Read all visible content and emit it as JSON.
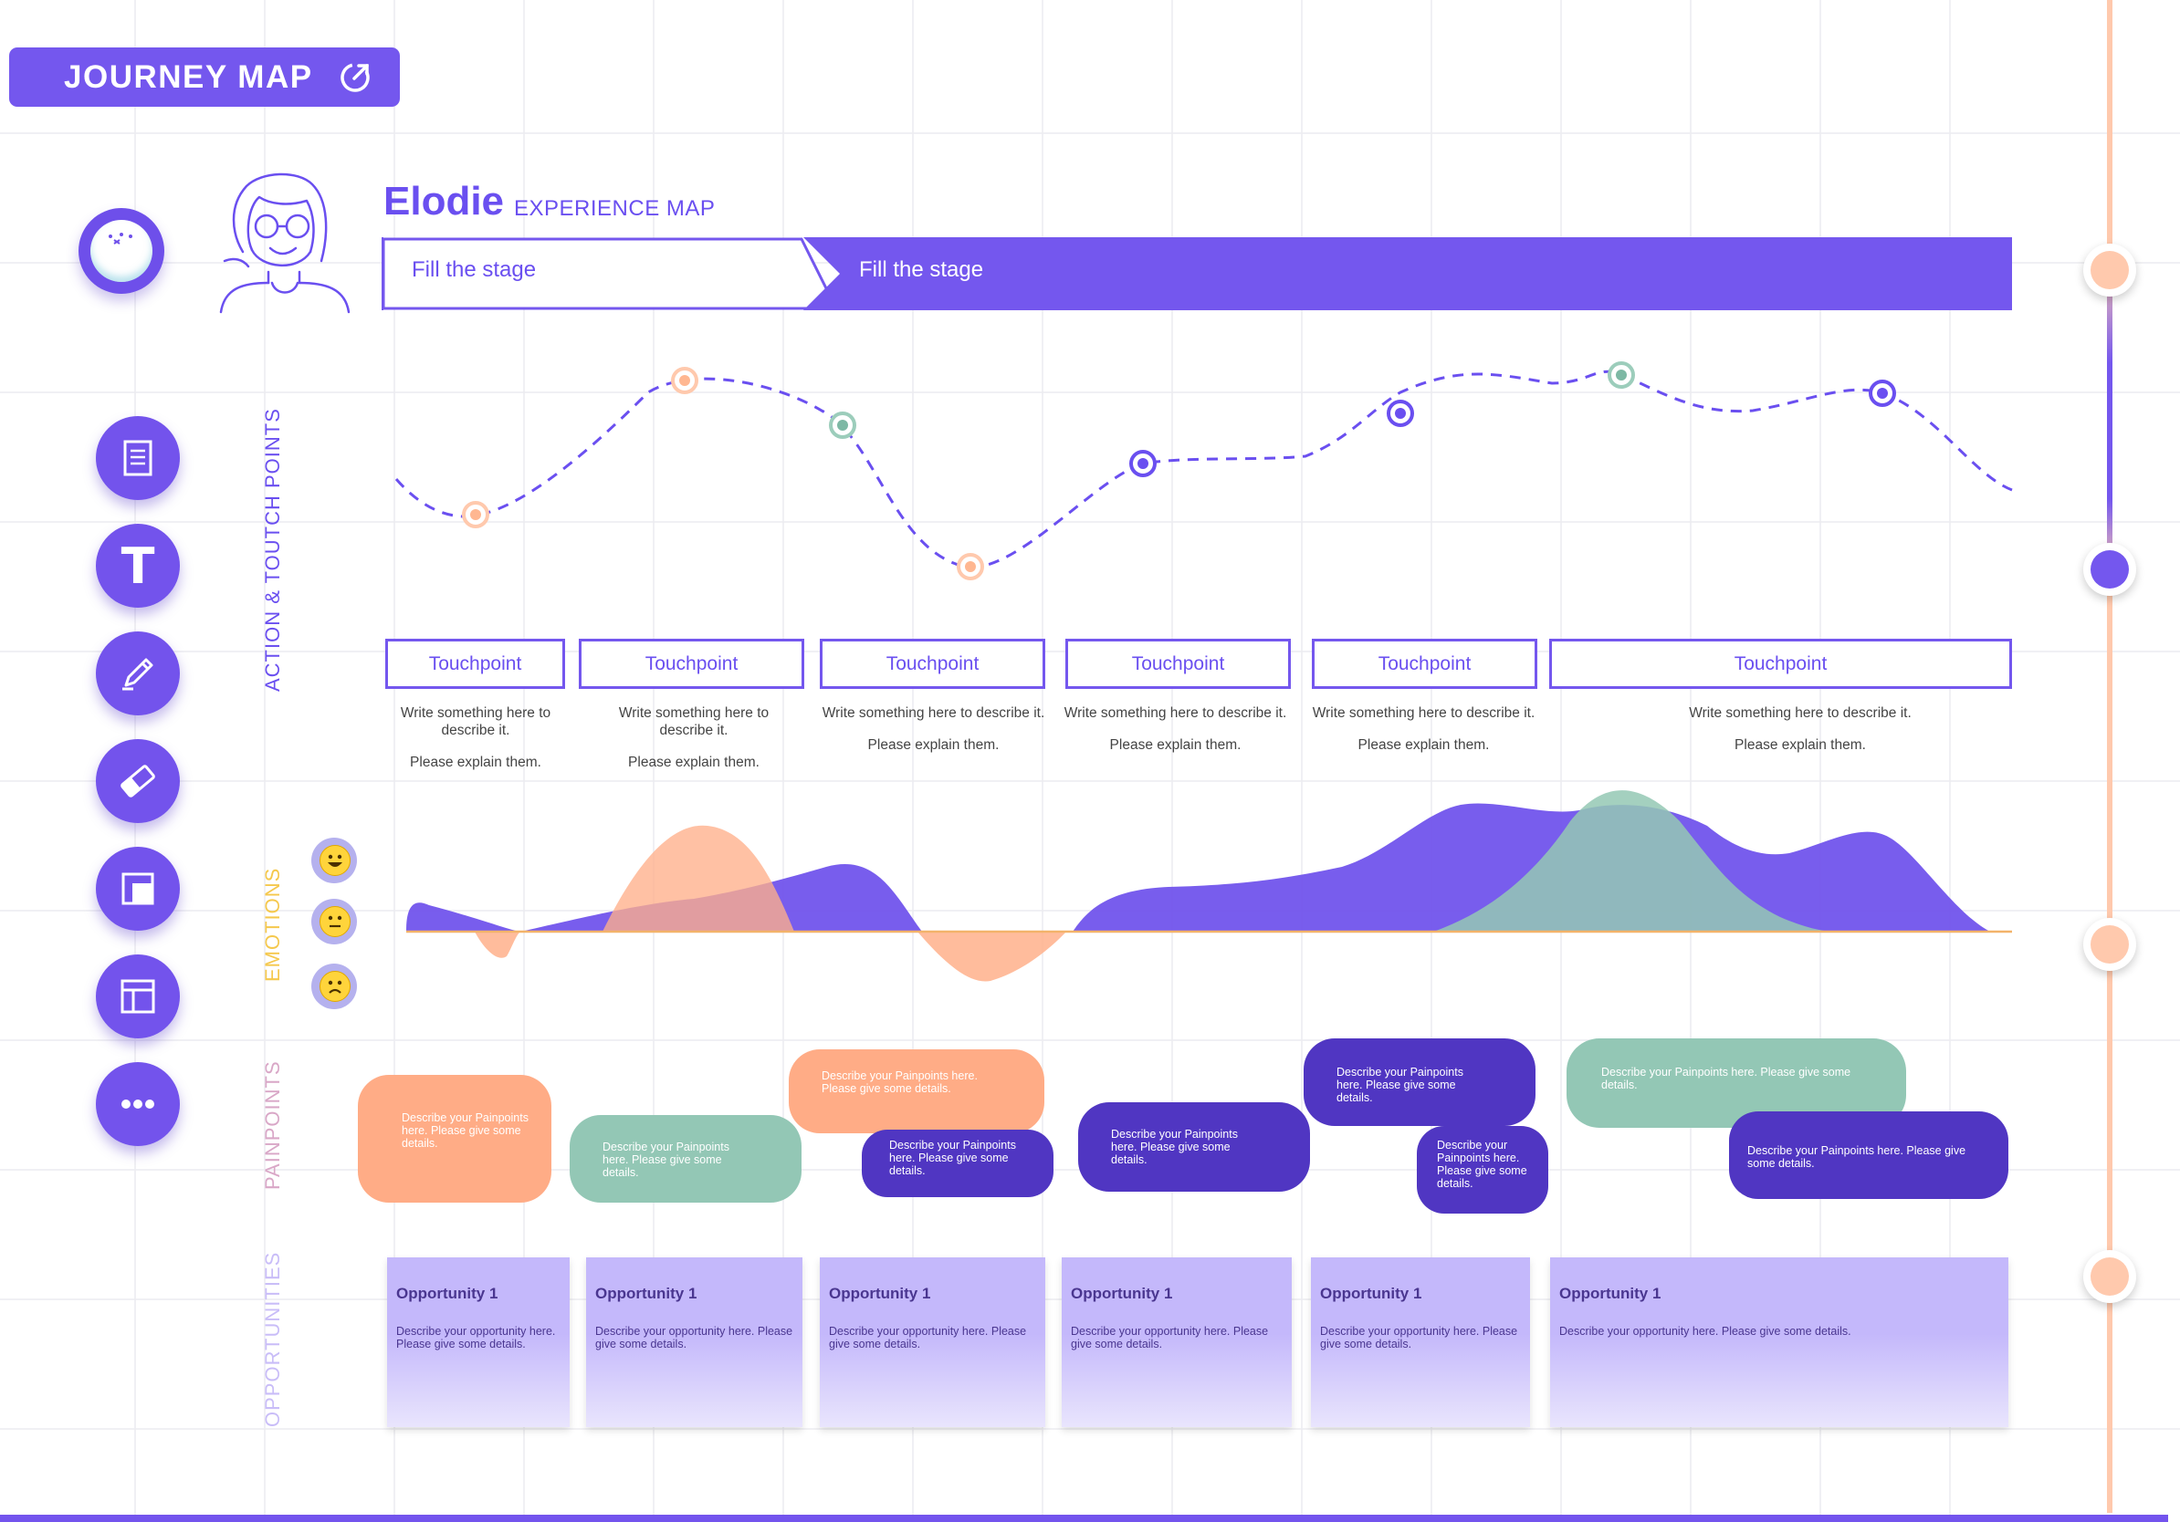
{
  "header": {
    "title": "JOURNEY MAP",
    "share_icon": "external-link-icon"
  },
  "persona": {
    "name": "Elodie",
    "subtitle": "EXPERIENCE MAP",
    "avatar_icon": "persona-avatar-icon"
  },
  "stages": [
    {
      "label": "Fill the stage"
    },
    {
      "label": "Fill the stage"
    }
  ],
  "sections": {
    "actions": "ACTION & TOUTCH POINTS",
    "emotions": "EMOTIONS",
    "painpoints": "PAINPOINTS",
    "opportunities": "OPPORTUNITIES"
  },
  "tools": [
    {
      "name": "document-icon"
    },
    {
      "name": "text-icon",
      "label": "T"
    },
    {
      "name": "pencil-icon"
    },
    {
      "name": "eraser-icon"
    },
    {
      "name": "layers-icon"
    },
    {
      "name": "layout-icon"
    },
    {
      "name": "more-icon"
    }
  ],
  "touchpoints": [
    {
      "label": "Touchpoint",
      "desc": "Write something here to describe it.",
      "note": "Please explain them."
    },
    {
      "label": "Touchpoint",
      "desc": "Write something here to describe it.",
      "note": "Please explain them."
    },
    {
      "label": "Touchpoint",
      "desc": "Write something here to describe it.",
      "note": "Please explain them."
    },
    {
      "label": "Touchpoint",
      "desc": "Write something here to describe it.",
      "note": "Please explain them."
    },
    {
      "label": "Touchpoint",
      "desc": "Write something here to describe it.",
      "note": "Please explain them."
    },
    {
      "label": "Touchpoint",
      "desc": "Write something here to describe it.",
      "note": "Please explain them."
    }
  ],
  "emotion_faces": [
    "happy-face-icon",
    "neutral-face-icon",
    "sad-face-icon"
  ],
  "painpoints": [
    {
      "text": "Describe your Painpoints here. Please give some details.",
      "color": "#ffac86"
    },
    {
      "text": "Describe your Painpoints here. Please give some details.",
      "color": "#93c7b5"
    },
    {
      "text": "Describe your Painpoints here. Please give some details.",
      "color": "#ffac86"
    },
    {
      "text": "Describe your Painpoints here. Please give some details.",
      "color": "#5036c2"
    },
    {
      "text": "Describe your Painpoints here. Please give some details.",
      "color": "#5036c2"
    },
    {
      "text": "Describe your Painpoints here. Please give some details.",
      "color": "#5036c2"
    },
    {
      "text": "Describe your Painpoints here. Please give some details.",
      "color": "#5036c2"
    },
    {
      "text": "Describe your Painpoints here. Please give some details.",
      "color": "#93c7b5"
    },
    {
      "text": "Describe your Painpoints here. Please give some details.",
      "color": "#5036c2"
    }
  ],
  "opportunities": [
    {
      "title": "Opportunity 1",
      "desc": "Describe your opportunity here. Please give some details."
    },
    {
      "title": "Opportunity 1",
      "desc": "Describe your opportunity here. Please give some details."
    },
    {
      "title": "Opportunity 1",
      "desc": "Describe your opportunity here. Please give some details."
    },
    {
      "title": "Opportunity 1",
      "desc": "Describe your opportunity here. Please give some details."
    },
    {
      "title": "Opportunity 1",
      "desc": "Describe your opportunity here. Please give some details."
    },
    {
      "title": "Opportunity 1",
      "desc": "Describe your opportunity here. Please give some details."
    }
  ],
  "colors": {
    "primary": "#7457ee",
    "dark_purple": "#5036c2",
    "peach": "#ffac86",
    "sage": "#93c7b5",
    "lavender": "#c4b8fb",
    "emotion_label": "#f5c84c",
    "painpoint_label": "#d9a7c7",
    "opportunity_label": "#c9bdf8"
  }
}
